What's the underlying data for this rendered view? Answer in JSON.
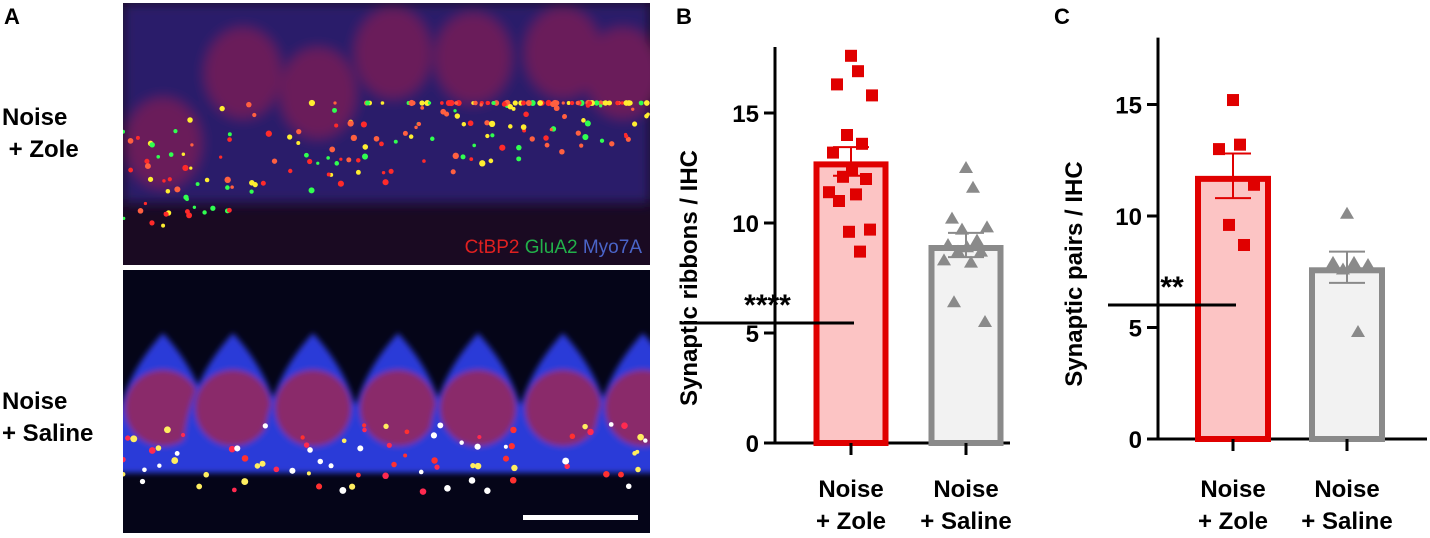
{
  "panel_a": {
    "label": "A",
    "rows": [
      {
        "line1": "Noise",
        "line2": " + Zole"
      },
      {
        "line1": "Noise",
        "line2": "+ Saline"
      }
    ],
    "channels": [
      {
        "name": "CtBP2",
        "color": "#e02020"
      },
      {
        "name": "GluA2",
        "color": "#22b04a"
      },
      {
        "name": "Myo7A",
        "color": "#4a64c8"
      }
    ]
  },
  "chart_data": [
    {
      "panel": "B",
      "type": "bar",
      "ylabel": "Synaptic ribbons / IHC",
      "ylim": [
        0,
        18
      ],
      "yticks": [
        "0",
        "5",
        "10",
        "15"
      ],
      "categories": [
        {
          "line1": "Noise",
          "line2": "+ Zole"
        },
        {
          "line1": "Noise",
          "line2": "+ Saline"
        }
      ],
      "significance": "****",
      "series": [
        {
          "mean": 12.8,
          "sem": 0.65,
          "fill": "#fcc4c4",
          "stroke": "#e00000",
          "marker": "square",
          "points": [
            17.6,
            16.9,
            16.3,
            15.8,
            14.0,
            13.6,
            13.2,
            12.4,
            12.1,
            12.0,
            11.4,
            11.3,
            11.0,
            9.7,
            9.6,
            8.7
          ]
        },
        {
          "mean": 9.0,
          "sem": 0.55,
          "fill": "#f2f2f2",
          "stroke": "#8a8a8a",
          "marker": "triangle",
          "points": [
            12.5,
            11.6,
            10.2,
            9.8,
            9.7,
            9.2,
            9.0,
            8.9,
            8.7,
            8.7,
            8.3,
            8.2,
            6.4,
            5.5
          ]
        }
      ]
    },
    {
      "panel": "C",
      "type": "bar",
      "ylabel": "Synaptic pairs / IHC",
      "ylim": [
        0,
        18
      ],
      "yticks": [
        "0",
        "5",
        "10",
        "15"
      ],
      "categories": [
        {
          "line1": "Noise",
          "line2": "+ Zole"
        },
        {
          "line1": "Noise",
          "line2": "+ Saline"
        }
      ],
      "significance": "**",
      "series": [
        {
          "mean": 11.8,
          "sem": 1.0,
          "fill": "#fcc4c4",
          "stroke": "#e00000",
          "marker": "square",
          "points": [
            15.2,
            13.2,
            13.0,
            11.4,
            9.6,
            8.7
          ]
        },
        {
          "mean": 7.7,
          "sem": 0.7,
          "fill": "#f2f2f2",
          "stroke": "#8a8a8a",
          "marker": "triangle",
          "points": [
            10.1,
            7.9,
            7.9,
            7.8,
            7.6,
            4.8
          ]
        }
      ]
    }
  ]
}
